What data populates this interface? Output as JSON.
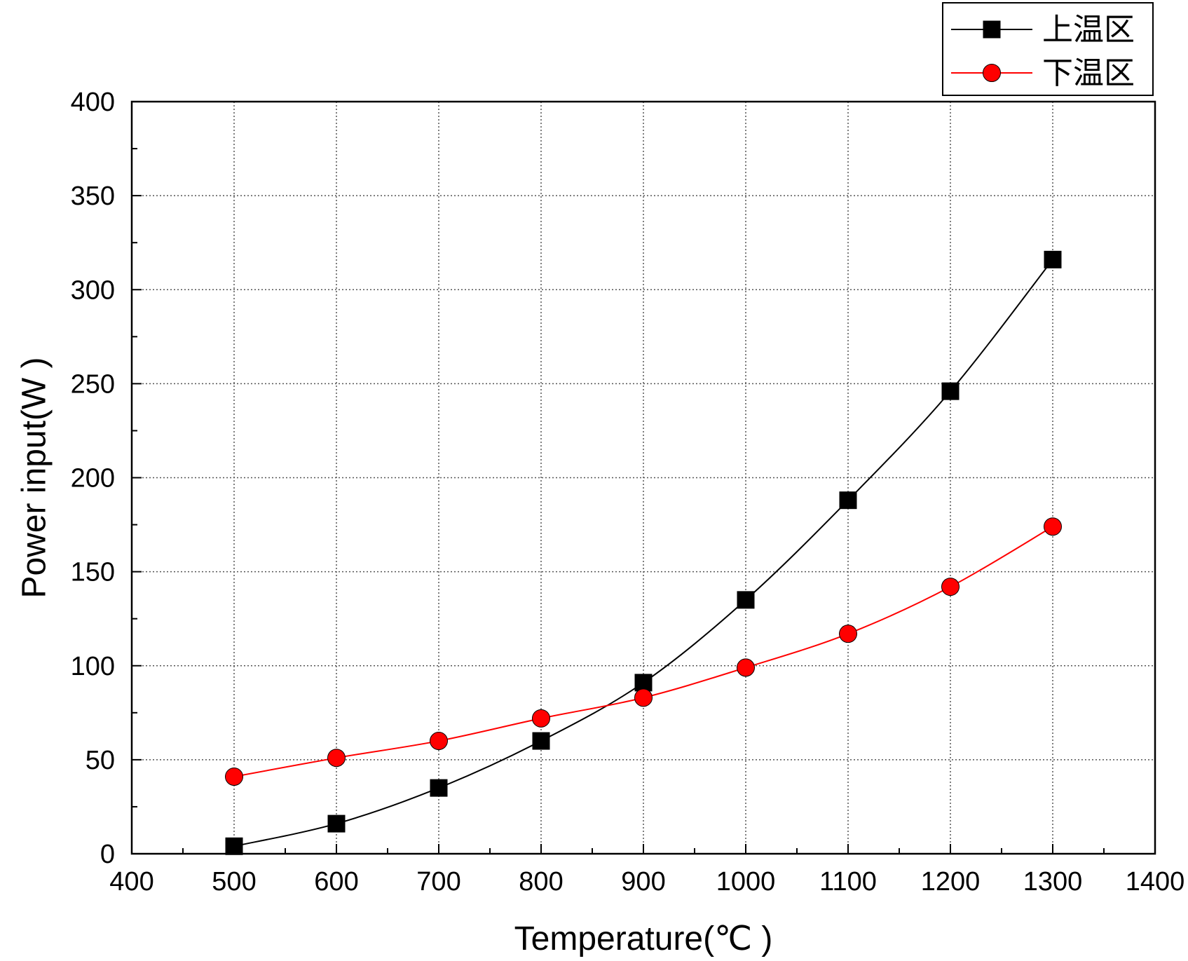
{
  "chart_data": {
    "type": "line",
    "xlabel": "Temperature(℃ )",
    "ylabel": "Power input(W )",
    "xlim": [
      400,
      1400
    ],
    "ylim": [
      0,
      400
    ],
    "xticks": [
      400,
      500,
      600,
      700,
      800,
      900,
      1000,
      1100,
      1200,
      1300,
      1400
    ],
    "yticks": [
      0,
      50,
      100,
      150,
      200,
      250,
      300,
      350,
      400
    ],
    "grid": true,
    "legend_position": "top-right",
    "x": [
      500,
      600,
      700,
      800,
      900,
      1000,
      1100,
      1200,
      1300
    ],
    "series": [
      {
        "name": "上温区",
        "marker": "square",
        "color": "#000000",
        "values": [
          4,
          16,
          35,
          60,
          91,
          135,
          188,
          246,
          316
        ]
      },
      {
        "name": "下温区",
        "marker": "circle",
        "color": "#ff0000",
        "values": [
          41,
          51,
          60,
          72,
          83,
          99,
          117,
          142,
          174
        ]
      }
    ]
  }
}
